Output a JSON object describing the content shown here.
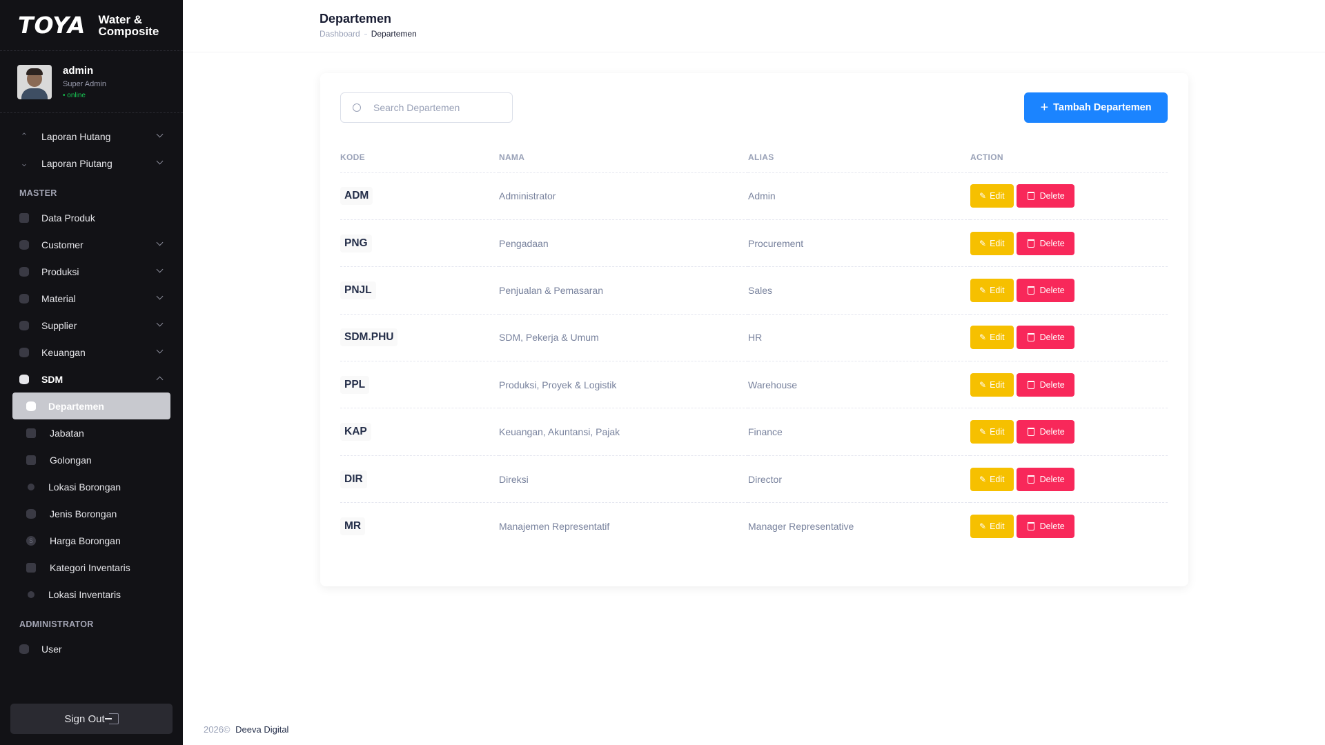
{
  "brand": {
    "name": "TOYA",
    "sub_line1": "Water &",
    "sub_line2": "Composite"
  },
  "user": {
    "name": "admin",
    "role": "Super Admin",
    "status": "• online"
  },
  "sidebar": {
    "top_items": [
      {
        "label": "Laporan Hutang",
        "icon": "arrow-up-icon"
      },
      {
        "label": "Laporan Piutang",
        "icon": "arrow-down-icon"
      }
    ],
    "master_label": "MASTER",
    "master_items": [
      {
        "label": "Data Produk"
      },
      {
        "label": "Customer"
      },
      {
        "label": "Produksi"
      },
      {
        "label": "Material"
      },
      {
        "label": "Supplier"
      },
      {
        "label": "Keuangan"
      },
      {
        "label": "SDM"
      }
    ],
    "sdm_items": [
      {
        "label": "Departemen"
      },
      {
        "label": "Jabatan"
      },
      {
        "label": "Golongan"
      },
      {
        "label": "Lokasi Borongan"
      },
      {
        "label": "Jenis Borongan"
      },
      {
        "label": "Harga Borongan",
        "icon_text": "S"
      },
      {
        "label": "Kategori Inventaris"
      },
      {
        "label": "Lokasi Inventaris"
      }
    ],
    "admin_label": "ADMINISTRATOR",
    "admin_items": [
      {
        "label": "User"
      }
    ],
    "signout_label": "Sign Out"
  },
  "header": {
    "title": "Departemen",
    "breadcrumb": [
      "Dashboard",
      "Departemen"
    ]
  },
  "search": {
    "placeholder": "Search Departemen"
  },
  "add_button": {
    "label": "Tambah Departemen"
  },
  "table": {
    "columns": [
      "KODE",
      "NAMA",
      "ALIAS",
      "ACTION"
    ],
    "edit_label": "Edit",
    "delete_label": "Delete",
    "rows": [
      {
        "kode": "ADM",
        "nama": "Administrator",
        "alias": "Admin"
      },
      {
        "kode": "PNG",
        "nama": "Pengadaan",
        "alias": "Procurement"
      },
      {
        "kode": "PNJL",
        "nama": "Penjualan & Pemasaran",
        "alias": "Sales"
      },
      {
        "kode": "SDM.PHU",
        "nama": "SDM, Pekerja & Umum",
        "alias": "HR"
      },
      {
        "kode": "PPL",
        "nama": "Produksi, Proyek & Logistik",
        "alias": "Warehouse"
      },
      {
        "kode": "KAP",
        "nama": "Keuangan, Akuntansi, Pajak",
        "alias": "Finance"
      },
      {
        "kode": "DIR",
        "nama": "Direksi",
        "alias": "Director"
      },
      {
        "kode": "MR",
        "nama": "Manajemen Representatif",
        "alias": "Manager Representative"
      }
    ]
  },
  "footer": {
    "year": "2026©",
    "company": "Deeva Digital"
  },
  "colors": {
    "primary": "#1b84ff",
    "edit": "#f6c000",
    "delete": "#f8285a",
    "sidebar_bg": "#121216",
    "online": "#17c653"
  }
}
